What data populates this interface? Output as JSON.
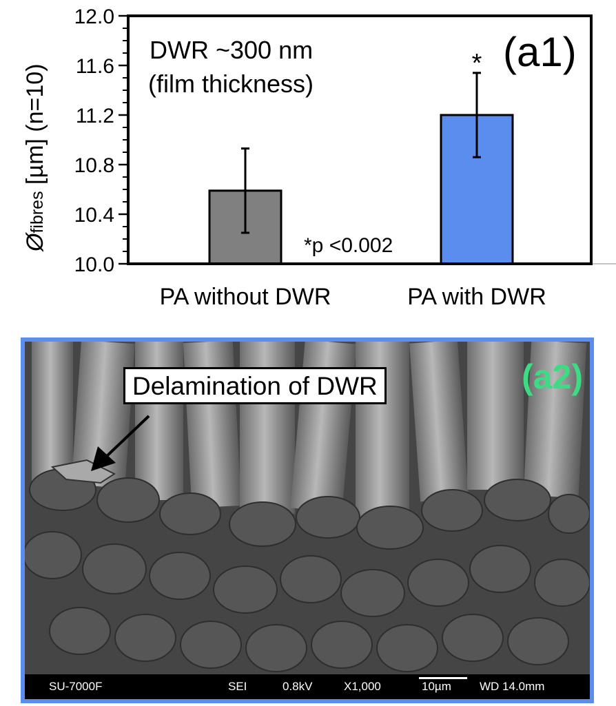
{
  "chart_data": {
    "type": "bar",
    "panel_label": "(a1)",
    "annotation_title": [
      "DWR ~300 nm",
      "(film thickness)"
    ],
    "ylabel_symbol": "Ø",
    "ylabel_sub": "fibres",
    "ylabel_rest": " [µm] (n=10)",
    "categories": [
      "PA without DWR",
      "PA with DWR"
    ],
    "values": [
      10.59,
      11.2
    ],
    "errors": [
      0.34,
      0.34
    ],
    "colors": [
      "#808080",
      "#5b8def"
    ],
    "significance": [
      "",
      "*"
    ],
    "p_value_note": "*p <0.002",
    "yticks": [
      "10.0",
      "10.4",
      "10.8",
      "11.2",
      "11.6",
      "12.0"
    ],
    "ylim": [
      10.0,
      12.0
    ]
  },
  "sem_panel": {
    "panel_label": "(a2)",
    "callout": "Delamination of DWR",
    "info_bar": {
      "instrument": "SU-7000F",
      "mode": "SEI",
      "voltage": "0.8kV",
      "magnification": "X1,000",
      "scale": "10µm",
      "working_distance": "WD 14.0mm"
    }
  }
}
